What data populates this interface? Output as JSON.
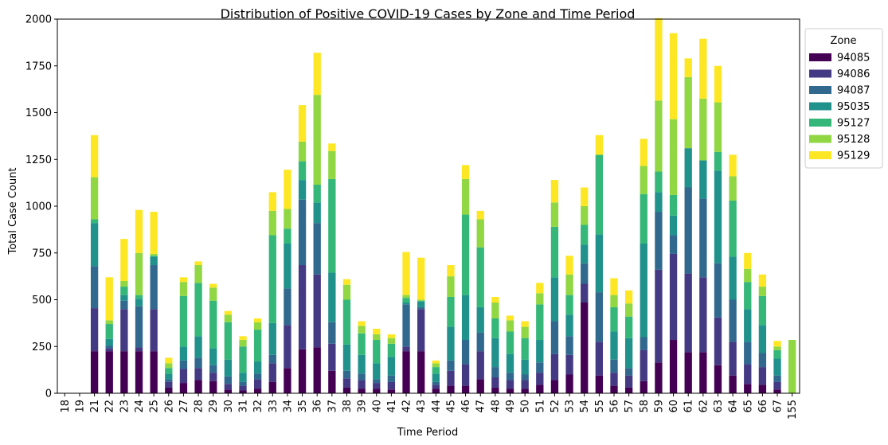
{
  "chart_data": {
    "type": "bar",
    "stacked": true,
    "title": "Distribution of Positive COVID-19 Cases by Zone and Time Period",
    "xlabel": "Time Period",
    "ylabel": "Total Case Count",
    "ylim": [
      0,
      2000
    ],
    "yticks": [
      0,
      250,
      500,
      750,
      1000,
      1250,
      1500,
      1750,
      2000
    ],
    "legend_title": "Zone",
    "legend_position": "outside-top-right",
    "grid": false,
    "categories": [
      "18",
      "19",
      "21",
      "22",
      "23",
      "24",
      "25",
      "26",
      "27",
      "28",
      "29",
      "30",
      "31",
      "32",
      "33",
      "34",
      "35",
      "36",
      "37",
      "38",
      "39",
      "40",
      "41",
      "42",
      "43",
      "44",
      "45",
      "46",
      "47",
      "48",
      "49",
      "50",
      "51",
      "52",
      "53",
      "54",
      "55",
      "56",
      "57",
      "58",
      "59",
      "60",
      "61",
      "62",
      "63",
      "64",
      "65",
      "66",
      "67",
      "155"
    ],
    "series": [
      {
        "name": "94085",
        "color": "#440154",
        "values": [
          0,
          0,
          225,
          225,
          225,
          225,
          225,
          30,
          55,
          70,
          65,
          20,
          15,
          25,
          60,
          135,
          235,
          245,
          120,
          30,
          25,
          25,
          20,
          225,
          225,
          25,
          40,
          40,
          75,
          30,
          25,
          25,
          45,
          70,
          100,
          485,
          95,
          40,
          30,
          65,
          165,
          285,
          220,
          220,
          150,
          95,
          50,
          45,
          20,
          0
        ]
      },
      {
        "name": "94086",
        "color": "#443983",
        "values": [
          0,
          0,
          230,
          15,
          225,
          20,
          225,
          30,
          75,
          65,
          45,
          30,
          25,
          50,
          100,
          230,
          450,
          390,
          145,
          50,
          45,
          30,
          40,
          25,
          225,
          20,
          80,
          115,
          150,
          55,
          45,
          45,
          65,
          140,
          105,
          100,
          180,
          70,
          65,
          165,
          495,
          460,
          420,
          400,
          255,
          180,
          105,
          95,
          40,
          0
        ]
      },
      {
        "name": "94087",
        "color": "#31688e",
        "values": [
          0,
          0,
          225,
          15,
          45,
          220,
          235,
          15,
          45,
          55,
          40,
          40,
          20,
          30,
          45,
          195,
          350,
          275,
          115,
          40,
          35,
          20,
          35,
          225,
          10,
          15,
          55,
          130,
          100,
          55,
          40,
          30,
          55,
          175,
          100,
          110,
          265,
          70,
          40,
          70,
          310,
          100,
          460,
          420,
          290,
          225,
          120,
          75,
          35,
          0
        ]
      },
      {
        "name": "95035",
        "color": "#21918c",
        "values": [
          0,
          0,
          230,
          35,
          30,
          40,
          45,
          30,
          75,
          115,
          90,
          90,
          50,
          65,
          170,
          240,
          105,
          110,
          265,
          140,
          100,
          85,
          100,
          10,
          30,
          45,
          180,
          240,
          135,
          155,
          100,
          80,
          120,
          235,
          115,
          100,
          310,
          150,
          160,
          500,
          105,
          105,
          210,
          205,
          495,
          230,
          175,
          150,
          90,
          0
        ]
      },
      {
        "name": "95127",
        "color": "#35b779",
        "values": [
          0,
          0,
          20,
          80,
          45,
          20,
          5,
          30,
          270,
          285,
          255,
          200,
          140,
          170,
          470,
          80,
          100,
          95,
          500,
          240,
          115,
          125,
          70,
          25,
          5,
          35,
          160,
          430,
          320,
          105,
          120,
          115,
          190,
          270,
          105,
          105,
          425,
          130,
          115,
          265,
          110,
          110,
          0,
          0,
          100,
          300,
          145,
          155,
          45,
          0
        ]
      },
      {
        "name": "95128",
        "color": "#90d743",
        "values": [
          0,
          0,
          225,
          20,
          30,
          225,
          10,
          25,
          75,
          95,
          70,
          40,
          35,
          40,
          130,
          105,
          105,
          480,
          150,
          80,
          40,
          30,
          30,
          15,
          5,
          20,
          110,
          190,
          150,
          85,
          60,
          60,
          60,
          130,
          110,
          100,
          0,
          65,
          70,
          150,
          380,
          405,
          380,
          330,
          265,
          130,
          70,
          50,
          20,
          285
        ]
      },
      {
        "name": "95129",
        "color": "#fde725",
        "values": [
          0,
          0,
          225,
          230,
          225,
          230,
          225,
          30,
          25,
          20,
          20,
          20,
          20,
          20,
          100,
          210,
          195,
          225,
          40,
          30,
          25,
          30,
          20,
          230,
          225,
          15,
          60,
          75,
          45,
          30,
          25,
          30,
          55,
          120,
          100,
          100,
          105,
          90,
          70,
          145,
          440,
          460,
          100,
          320,
          195,
          115,
          85,
          65,
          30,
          0
        ]
      }
    ]
  }
}
